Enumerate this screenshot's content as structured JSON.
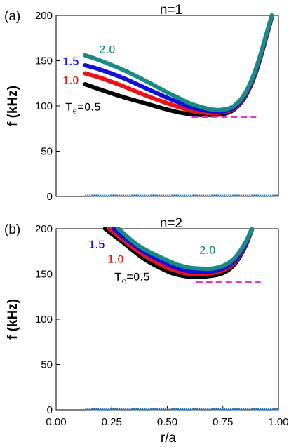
{
  "figure": {
    "xlabel": "r/a",
    "x_tick_labels": [
      "0.00",
      "0.25",
      "0.50",
      "0.75",
      "1.00"
    ]
  },
  "colors": {
    "te_0_5": "#000000",
    "te_1_0": "#e8141a",
    "te_1_5": "#1010d8",
    "te_2_0": "#1a8a86",
    "threshold": "#ee33cc",
    "zero_line": "#2a6fa8"
  },
  "chart_data": [
    {
      "type": "line",
      "panel_label": "(a)",
      "title": "n=1",
      "ylabel": "f (kHz)",
      "xlim": [
        0,
        1
      ],
      "ylim": [
        0,
        200
      ],
      "y_tick_labels": [
        "0",
        "50",
        "100",
        "150",
        "200"
      ],
      "series": [
        {
          "name": "Te=0.5",
          "label_main": "T",
          "label_sub": "e",
          "label_suffix": "=0.5",
          "color_key": "te_0_5",
          "x": [
            0.13,
            0.2,
            0.3,
            0.4,
            0.5,
            0.55,
            0.6,
            0.65,
            0.7,
            0.75,
            0.8,
            0.85,
            0.9,
            0.95,
            0.97
          ],
          "y": [
            124,
            118,
            110,
            103,
            96,
            93,
            91,
            90,
            90,
            91,
            96,
            110,
            138,
            180,
            198
          ]
        },
        {
          "name": "1.0",
          "color_key": "te_1_0",
          "x": [
            0.13,
            0.2,
            0.3,
            0.4,
            0.5,
            0.55,
            0.6,
            0.65,
            0.7,
            0.75,
            0.8,
            0.85,
            0.9,
            0.95,
            0.97
          ],
          "y": [
            136,
            131,
            122,
            112,
            103,
            99,
            95,
            93,
            92,
            93,
            97,
            111,
            139,
            181,
            198
          ]
        },
        {
          "name": "1.5",
          "color_key": "te_1_5",
          "x": [
            0.13,
            0.2,
            0.3,
            0.4,
            0.5,
            0.55,
            0.6,
            0.65,
            0.7,
            0.75,
            0.8,
            0.85,
            0.9,
            0.95,
            0.97
          ],
          "y": [
            145,
            140,
            131,
            120,
            109,
            104,
            99,
            96,
            94,
            94,
            98,
            112,
            140,
            182,
            199
          ]
        },
        {
          "name": "2.0",
          "color_key": "te_2_0",
          "x": [
            0.13,
            0.2,
            0.3,
            0.4,
            0.5,
            0.55,
            0.6,
            0.65,
            0.7,
            0.75,
            0.8,
            0.85,
            0.9,
            0.95,
            0.97
          ],
          "y": [
            156,
            150,
            140,
            128,
            115,
            109,
            103,
            99,
            96,
            96,
            100,
            114,
            142,
            183,
            200
          ]
        }
      ],
      "threshold": {
        "x": [
          0.61,
          0.9
        ],
        "y": 88
      },
      "zero_line": {
        "x": [
          0.13,
          1.0
        ],
        "y": 0
      }
    },
    {
      "type": "line",
      "panel_label": "(b)",
      "title": "n=2",
      "ylabel": "f (kHz)",
      "xlim": [
        0,
        1
      ],
      "ylim": [
        0,
        200
      ],
      "y_tick_labels": [
        "0",
        "50",
        "100",
        "150",
        "200"
      ],
      "series": [
        {
          "name": "Te=0.5",
          "label_main": "T",
          "label_sub": "e",
          "label_suffix": "=0.5",
          "color_key": "te_0_5",
          "x": [
            0.22,
            0.3,
            0.4,
            0.5,
            0.55,
            0.6,
            0.65,
            0.7,
            0.75,
            0.8,
            0.85,
            0.88
          ],
          "y": [
            200,
            185,
            166,
            153,
            149,
            147,
            147,
            148,
            151,
            160,
            180,
            199
          ]
        },
        {
          "name": "1.0",
          "color_key": "te_1_0",
          "x": [
            0.24,
            0.3,
            0.4,
            0.5,
            0.55,
            0.6,
            0.65,
            0.7,
            0.75,
            0.8,
            0.85,
            0.88
          ],
          "y": [
            200,
            188,
            170,
            157,
            153,
            150,
            150,
            151,
            154,
            162,
            181,
            199
          ]
        },
        {
          "name": "1.5",
          "color_key": "te_1_5",
          "x": [
            0.26,
            0.3,
            0.4,
            0.5,
            0.55,
            0.6,
            0.65,
            0.7,
            0.75,
            0.8,
            0.85,
            0.88
          ],
          "y": [
            200,
            191,
            174,
            161,
            156,
            153,
            152,
            153,
            156,
            164,
            182,
            199
          ]
        },
        {
          "name": "2.0",
          "color_key": "te_2_0",
          "x": [
            0.28,
            0.35,
            0.4,
            0.5,
            0.55,
            0.6,
            0.65,
            0.7,
            0.75,
            0.8,
            0.85,
            0.88
          ],
          "y": [
            200,
            185,
            177,
            165,
            160,
            157,
            156,
            156,
            159,
            167,
            184,
            200
          ]
        }
      ],
      "threshold": {
        "x": [
          0.63,
          0.92
        ],
        "y": 141
      },
      "zero_line": {
        "x": [
          0.13,
          1.0
        ],
        "y": 0
      }
    }
  ]
}
